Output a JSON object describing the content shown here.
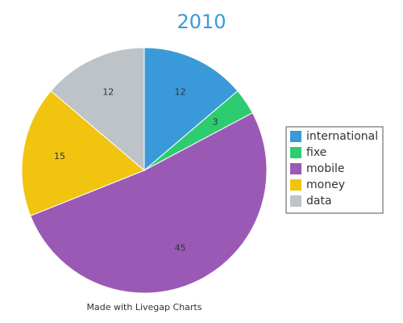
{
  "chart_data": {
    "type": "pie",
    "title": "2010",
    "categories": [
      "international",
      "fixe",
      "mobile",
      "money",
      "data"
    ],
    "values": [
      12,
      3,
      45,
      15,
      12
    ],
    "colors": [
      "#3a9ad9",
      "#2ecc71",
      "#9b59b6",
      "#f1c40f",
      "#bdc3c7"
    ],
    "legend": "right",
    "footer": "Made with Livegap Charts"
  }
}
